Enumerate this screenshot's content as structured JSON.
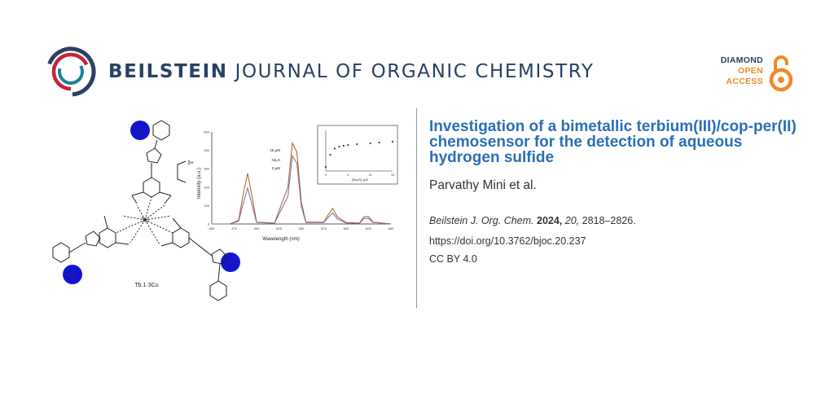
{
  "header": {
    "brand_bold": "BEILSTEIN",
    "brand_rest": "JOURNAL OF ORGANIC CHEMISTRY",
    "badge": {
      "line1": "DIAMOND",
      "line2": "OPEN",
      "line3": "ACCESS"
    },
    "colors": {
      "navy": "#2a4063",
      "accent_red": "#c0263d",
      "accent_teal": "#1e7e9e",
      "accent_orange": "#f08a24"
    }
  },
  "graphic": {
    "complex_label": "Tb.1·3Cu",
    "cu_labels": [
      "Cu",
      "Cu",
      "Cu"
    ],
    "charge": "3+",
    "metal_center": "Tb",
    "main_chart": {
      "xlabel": "Wavelength (nm)",
      "ylabel": "Intensity (a.u.)",
      "x_ticks": [
        "450",
        "475",
        "500",
        "525",
        "550",
        "575",
        "600",
        "625",
        "650"
      ],
      "y_ticks": [
        "0",
        "100",
        "200",
        "300",
        "400",
        "500"
      ],
      "annotations": [
        "15 µM",
        "Na₂S",
        "0 µM"
      ]
    },
    "inset_chart": {
      "xlabel": "[Na₂S], µM",
      "x_ticks": [
        "0",
        "5",
        "10",
        "15"
      ]
    }
  },
  "chart_data": [
    {
      "type": "line",
      "xlabel": "Wavelength (nm)",
      "ylabel": "Intensity (a.u.)",
      "xlim": [
        450,
        650
      ],
      "ylim": [
        0,
        500
      ],
      "x": [
        450,
        470,
        480,
        485,
        490,
        495,
        500,
        520,
        535,
        540,
        545,
        550,
        555,
        575,
        580,
        585,
        590,
        600,
        615,
        620,
        625,
        630,
        650
      ],
      "series": [
        {
          "values": [
            0,
            0,
            20,
            160,
            275,
            150,
            10,
            5,
            200,
            440,
            390,
            120,
            10,
            10,
            50,
            85,
            40,
            8,
            5,
            40,
            40,
            10,
            0
          ]
        },
        {
          "values": [
            0,
            0,
            15,
            110,
            195,
            105,
            8,
            4,
            150,
            370,
            330,
            95,
            8,
            8,
            35,
            60,
            28,
            5,
            4,
            30,
            30,
            8,
            0
          ]
        }
      ]
    },
    {
      "type": "scatter",
      "xlabel": "[Na₂S], µM",
      "xlim": [
        0,
        15
      ],
      "x": [
        0,
        1,
        2,
        3,
        4,
        5,
        7,
        10,
        12,
        15
      ],
      "values": [
        0.1,
        0.4,
        0.55,
        0.6,
        0.62,
        0.64,
        0.66,
        0.68,
        0.7,
        0.72
      ]
    }
  ],
  "article": {
    "title": "Investigation of a bimetallic terbium(III)/cop-per(II) chemosensor for the detection of aqueous hydrogen sulfide",
    "authors": "Parvathy Mini et al.",
    "journal": "Beilstein J. Org. Chem.",
    "year": "2024,",
    "volume": "20,",
    "pages": "2818–2826.",
    "doi": "https://doi.org/10.3762/bjoc.20.237",
    "license": "CC BY 4.0"
  }
}
